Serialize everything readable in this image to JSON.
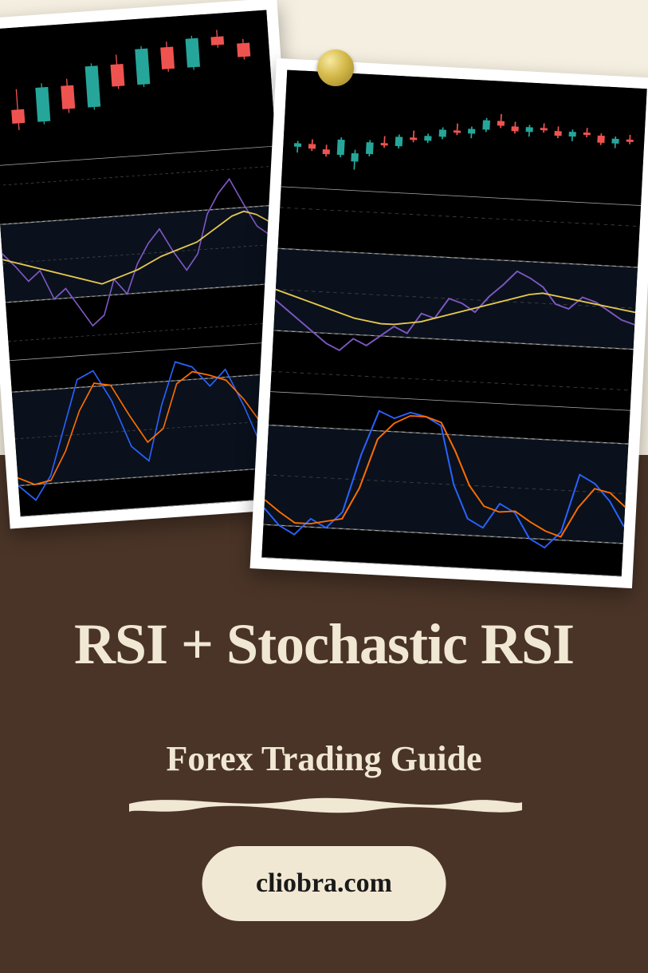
{
  "title_main": "RSI + Stochastic RSI",
  "title_sub": "Forex Trading Guide",
  "website": "cliobra.com",
  "colors": {
    "bg_top": "#f5efe1",
    "bg_bottom": "#4a3427",
    "text": "#f1e8d4",
    "pill_bg": "#f1e8d4",
    "pill_text": "#1a1a1a",
    "chart_bg": "#000000",
    "candle_up": "#26a69a",
    "candle_down": "#ef5350",
    "rsi_line": "#7e57c2",
    "rsi_ma": "#e6c84e",
    "stoch_k": "#2962ff",
    "stoch_d": "#ff6d00",
    "grid": "#444444",
    "solid_line": "#aaaaaa",
    "band_fill": "rgba(30,50,80,0.35)"
  },
  "chart_left": {
    "panels": [
      {
        "type": "candlestick",
        "h": 0.28,
        "candles": [
          {
            "x": 1,
            "o": 40,
            "h": 55,
            "l": 25,
            "c": 30,
            "up": false
          },
          {
            "x": 2,
            "o": 30,
            "h": 58,
            "l": 28,
            "c": 55,
            "up": true
          },
          {
            "x": 3,
            "o": 55,
            "h": 60,
            "l": 35,
            "c": 38,
            "up": false
          },
          {
            "x": 4,
            "o": 38,
            "h": 70,
            "l": 36,
            "c": 68,
            "up": true
          },
          {
            "x": 5,
            "o": 68,
            "h": 75,
            "l": 50,
            "c": 52,
            "up": false
          },
          {
            "x": 6,
            "o": 52,
            "h": 80,
            "l": 50,
            "c": 78,
            "up": true
          },
          {
            "x": 7,
            "o": 78,
            "h": 82,
            "l": 60,
            "c": 62,
            "up": false
          },
          {
            "x": 8,
            "o": 62,
            "h": 85,
            "l": 60,
            "c": 83,
            "up": true
          },
          {
            "x": 9,
            "o": 83,
            "h": 88,
            "l": 75,
            "c": 77,
            "up": false
          },
          {
            "x": 10,
            "o": 77,
            "h": 80,
            "l": 65,
            "c": 67,
            "up": false
          }
        ]
      },
      {
        "type": "rsi",
        "h": 0.4,
        "bands": [
          30,
          70
        ],
        "dashed": [
          10,
          30,
          50,
          70,
          90
        ],
        "rsi": [
          55,
          48,
          40,
          45,
          30,
          35,
          25,
          15,
          20,
          38,
          30,
          45,
          55,
          62,
          50,
          40,
          48,
          68,
          78,
          85,
          72,
          60,
          55,
          50
        ],
        "ma": [
          52,
          50,
          48,
          46,
          44,
          42,
          40,
          38,
          36,
          38,
          40,
          42,
          45,
          48,
          50,
          52,
          54,
          58,
          62,
          66,
          68,
          66,
          62,
          58
        ]
      },
      {
        "type": "stoch",
        "h": 0.32,
        "bands": [
          20,
          80
        ],
        "dashed": [
          20,
          50,
          80
        ],
        "k": [
          20,
          10,
          25,
          55,
          85,
          90,
          70,
          40,
          30,
          65,
          92,
          88,
          75,
          85,
          60,
          30,
          20,
          45
        ],
        "d": [
          25,
          20,
          22,
          40,
          65,
          82,
          80,
          60,
          42,
          50,
          78,
          85,
          82,
          78,
          65,
          48,
          35,
          38
        ]
      }
    ]
  },
  "chart_right": {
    "panels": [
      {
        "type": "candlestick",
        "h": 0.24,
        "candles": [
          {
            "x": 1,
            "o": 35,
            "h": 40,
            "l": 30,
            "c": 38,
            "up": true
          },
          {
            "x": 2,
            "o": 38,
            "h": 42,
            "l": 32,
            "c": 34,
            "up": false
          },
          {
            "x": 3,
            "o": 34,
            "h": 38,
            "l": 28,
            "c": 30,
            "up": false
          },
          {
            "x": 4,
            "o": 30,
            "h": 45,
            "l": 28,
            "c": 43,
            "up": true
          },
          {
            "x": 5,
            "o": 25,
            "h": 35,
            "l": 18,
            "c": 32,
            "up": true
          },
          {
            "x": 6,
            "o": 32,
            "h": 44,
            "l": 30,
            "c": 42,
            "up": true
          },
          {
            "x": 7,
            "o": 42,
            "h": 48,
            "l": 38,
            "c": 40,
            "up": false
          },
          {
            "x": 8,
            "o": 40,
            "h": 50,
            "l": 38,
            "c": 48,
            "up": true
          },
          {
            "x": 9,
            "o": 48,
            "h": 54,
            "l": 44,
            "c": 46,
            "up": false
          },
          {
            "x": 10,
            "o": 46,
            "h": 52,
            "l": 44,
            "c": 50,
            "up": true
          },
          {
            "x": 11,
            "o": 50,
            "h": 58,
            "l": 48,
            "c": 56,
            "up": true
          },
          {
            "x": 12,
            "o": 56,
            "h": 62,
            "l": 52,
            "c": 54,
            "up": false
          },
          {
            "x": 13,
            "o": 54,
            "h": 60,
            "l": 50,
            "c": 58,
            "up": true
          },
          {
            "x": 14,
            "o": 58,
            "h": 68,
            "l": 56,
            "c": 66,
            "up": true
          },
          {
            "x": 15,
            "o": 66,
            "h": 72,
            "l": 60,
            "c": 62,
            "up": false
          },
          {
            "x": 16,
            "o": 62,
            "h": 66,
            "l": 56,
            "c": 58,
            "up": false
          },
          {
            "x": 17,
            "o": 58,
            "h": 64,
            "l": 54,
            "c": 62,
            "up": true
          },
          {
            "x": 18,
            "o": 62,
            "h": 66,
            "l": 58,
            "c": 60,
            "up": false
          },
          {
            "x": 19,
            "o": 60,
            "h": 64,
            "l": 54,
            "c": 56,
            "up": false
          },
          {
            "x": 20,
            "o": 56,
            "h": 62,
            "l": 52,
            "c": 60,
            "up": true
          },
          {
            "x": 21,
            "o": 60,
            "h": 64,
            "l": 56,
            "c": 58,
            "up": false
          },
          {
            "x": 22,
            "o": 58,
            "h": 60,
            "l": 50,
            "c": 52,
            "up": false
          },
          {
            "x": 23,
            "o": 52,
            "h": 58,
            "l": 48,
            "c": 56,
            "up": true
          },
          {
            "x": 24,
            "o": 56,
            "h": 60,
            "l": 52,
            "c": 54,
            "up": false
          }
        ]
      },
      {
        "type": "rsi",
        "h": 0.42,
        "bands": [
          30,
          70
        ],
        "dashed": [
          10,
          30,
          50,
          70,
          90
        ],
        "rsi": [
          45,
          40,
          35,
          30,
          25,
          22,
          28,
          25,
          30,
          35,
          32,
          42,
          40,
          50,
          48,
          44,
          52,
          58,
          65,
          62,
          58,
          50,
          48,
          54,
          52,
          48,
          44,
          42
        ],
        "ma": [
          50,
          48,
          46,
          44,
          42,
          40,
          38,
          37,
          36,
          36,
          37,
          38,
          40,
          42,
          44,
          46,
          48,
          50,
          52,
          54,
          55,
          54,
          53,
          52,
          51,
          50,
          49,
          48
        ]
      },
      {
        "type": "stoch",
        "h": 0.34,
        "bands": [
          20,
          80
        ],
        "dashed": [
          20,
          50,
          80
        ],
        "k": [
          30,
          20,
          15,
          25,
          20,
          30,
          65,
          92,
          88,
          92,
          90,
          85,
          50,
          30,
          25,
          40,
          35,
          20,
          15,
          25,
          60,
          55,
          45,
          30
        ],
        "d": [
          35,
          28,
          22,
          22,
          24,
          26,
          45,
          75,
          85,
          90,
          90,
          87,
          70,
          50,
          38,
          35,
          36,
          30,
          25,
          22,
          40,
          52,
          50,
          42
        ]
      }
    ]
  }
}
